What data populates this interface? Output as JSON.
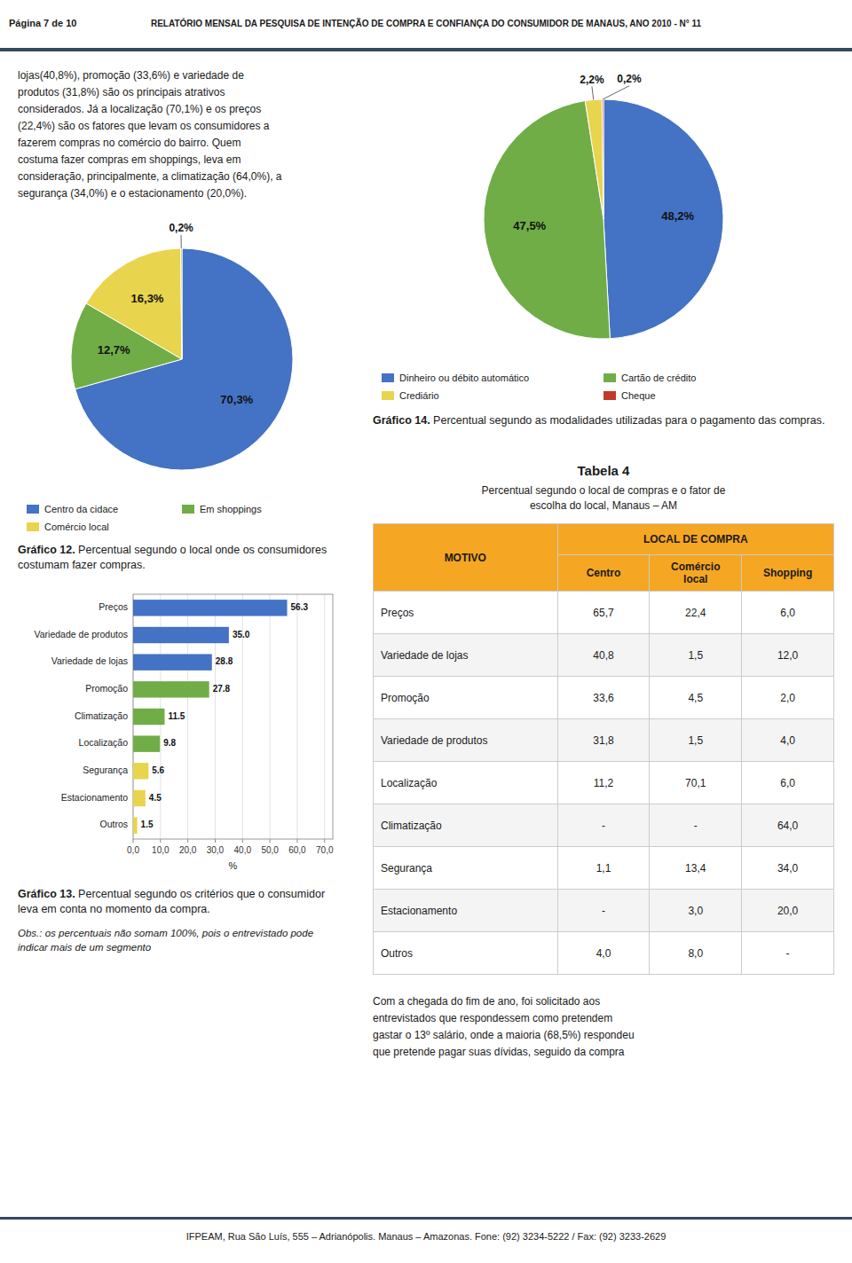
{
  "page": {
    "header": "Página 7 de 10",
    "title": "RELATÓRIO MENSAL DA PESQUISA DE INTENÇÃO DE COMPRA E CONFIANÇA DO CONSUMIDOR DE MANAUS, ANO 2010 - N° 11",
    "text_left": [
      "lojas(40,8%), promoção (33,6%) e variedade de",
      "produtos (31,8%) são os principais atrativos",
      "considerados. Já a localização (70,1%) e os preços",
      "(22,4%) são os fatores que levam os consumidores a",
      "fazerem compras no comércio do bairro. Quem",
      "costuma fazer compras em shoppings, leva em",
      "consideração, principalmente, a climatização (64,0%), a",
      "segurança (34,0%) e o estacionamento (20,0%)."
    ],
    "text_right": [
      "Com a chegada do fim de ano, foi solicitado aos",
      "entrevistados que respondessem como pretendem",
      "gastar o 13º salário, onde a maioria (68,5%) respondeu",
      "que pretende pagar suas dívidas, seguido da compra"
    ],
    "footer": "IFPEAM, Rua São Luís, 555 – Adrianópolis. Manaus – Amazonas. Fone: (92) 3234-5222 / Fax:  (92) 3233-2629"
  },
  "chart_data": [
    {
      "type": "pie",
      "title": "Gráfico 12.",
      "subtitle": "Percentual segundo o local onde os consumidores costumam fazer compras.",
      "categories": [
        "Centro da cidace",
        "Em shoppings",
        "Comércio local",
        null
      ],
      "values": [
        70.3,
        12.7,
        16.3,
        0.2
      ],
      "value_labels": [
        "70,3%",
        "12,7%",
        "16,3%",
        "0,2%"
      ],
      "colors": [
        "#4472C4",
        "#70AD47",
        "#E8D44D",
        "#BFA030"
      ],
      "data_labels": true,
      "legend": "bottom"
    },
    {
      "type": "bar",
      "orientation": "horizontal",
      "title": "Gráfico 13.",
      "subtitle": "Percentual segundo os critérios que o consumidor leva em conta no momento da compra.",
      "categories": [
        "Preços",
        "Variedade de produtos",
        "Variedade de lojas",
        "Promoção",
        "Climatização",
        "Localização",
        "Segurança",
        "Estacionamento",
        "Outros"
      ],
      "values": [
        56.3,
        35.0,
        28.8,
        27.8,
        11.5,
        9.8,
        5.6,
        4.5,
        1.5
      ],
      "value_labels": [
        "56.3",
        "35.0",
        "28.8",
        "27.8",
        "11.5",
        "9.8",
        "5.6",
        "4.5",
        "1.5"
      ],
      "colors": [
        "#4472C4",
        "#4472C4",
        "#4472C4",
        "#70AD47",
        "#70AD47",
        "#70AD47",
        "#E8D44D",
        "#E8D44D",
        "#E8D44D"
      ],
      "xlabel": "%",
      "xlim": [
        0,
        73
      ],
      "xticks": [
        {
          "value": 0,
          "label": "0,0"
        },
        {
          "value": 10,
          "label": "10,0"
        },
        {
          "value": 20,
          "label": "20,0"
        },
        {
          "value": 30,
          "label": "30,0"
        },
        {
          "value": 40,
          "label": "40,0"
        },
        {
          "value": 50,
          "label": "50,0"
        },
        {
          "value": 60,
          "label": "60,0"
        },
        {
          "value": 70,
          "label": "70,0"
        }
      ],
      "grid": true,
      "data_labels": true,
      "note": "Obs.: os percentuais não somam 100%, pois o entrevistado pode\nindicar mais de um segmento"
    },
    {
      "type": "pie",
      "title": "Gráfico 14.",
      "subtitle": "Percentual segundo as modalidades utilizadas para o pagamento das compras.",
      "categories": [
        "Dinheiro ou débito automático",
        "Cartão de crédito",
        "Crediário",
        "Cheque"
      ],
      "values": [
        48.2,
        47.5,
        2.2,
        0.2
      ],
      "value_labels": [
        "48,2%",
        "47,5%",
        "2,2%",
        "0,2%"
      ],
      "colors": [
        "#4472C4",
        "#70AD47",
        "#E8D44D",
        "#C0392B"
      ],
      "data_labels": true,
      "legend": "bottom"
    },
    {
      "type": "table",
      "title": "Tabela 4",
      "subtitle": [
        "Percentual segundo o local de compras e o fator de",
        "escolha do local, Manaus – AM"
      ],
      "row_header": "MOTIVO",
      "column_header": "LOCAL DE COMPRA",
      "color": "#F5A623",
      "categories": [
        "Preços",
        "Variedade de lojas",
        "Promoção",
        "Variedade de produtos",
        "Localização",
        "Climatização",
        "Segurança",
        "Estacionamento",
        "Outros"
      ],
      "series": [
        {
          "name": "Centro",
          "values": [
            65.7,
            40.8,
            33.6,
            31.8,
            11.2,
            null,
            1.1,
            null,
            4.0
          ],
          "value_labels": [
            "65,7",
            "40,8",
            "33,6",
            "31,8",
            "11,2",
            "-",
            "1,1",
            "-",
            "4,0"
          ]
        },
        {
          "name": "Comércio\nlocal",
          "values": [
            22.4,
            1.5,
            4.5,
            1.5,
            70.1,
            null,
            13.4,
            3.0,
            8.0
          ],
          "value_labels": [
            "22,4",
            "1,5",
            "4,5",
            "1,5",
            "70,1",
            "-",
            "13,4",
            "3,0",
            "8,0"
          ]
        },
        {
          "name": "Shopping",
          "values": [
            6.0,
            12.0,
            2.0,
            4.0,
            6.0,
            64.0,
            34.0,
            20.0,
            null
          ],
          "value_labels": [
            "6,0",
            "12,0",
            "2,0",
            "4,0",
            "6,0",
            "64,0",
            "34,0",
            "20,0",
            "-"
          ]
        }
      ]
    }
  ]
}
